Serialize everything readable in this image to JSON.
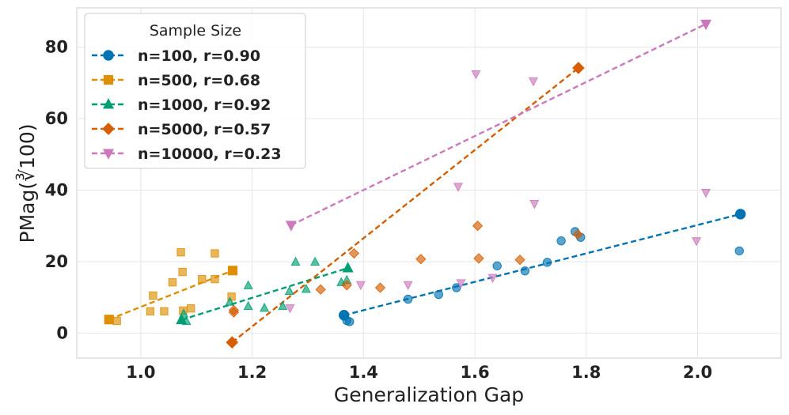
{
  "chart_data": {
    "type": "scatter",
    "title": "",
    "xlabel": "Generalization Gap",
    "ylabel": "PMag(∛100)",
    "xlim": [
      0.885,
      2.15
    ],
    "ylim": [
      -7,
      91
    ],
    "xticks": [
      1.0,
      1.2,
      1.4,
      1.6,
      1.8,
      2.0
    ],
    "yticks": [
      0,
      20,
      40,
      60,
      80
    ],
    "xtick_labels": [
      "1.0",
      "1.2",
      "1.4",
      "1.6",
      "1.8",
      "2.0"
    ],
    "ytick_labels": [
      "0",
      "20",
      "40",
      "60",
      "80"
    ],
    "grid": true,
    "legend": {
      "title": "Sample Size",
      "position": "top-left"
    },
    "series": [
      {
        "name": "n=100, r=0.90",
        "color": "#0173b2",
        "marker": "circle",
        "points": [
          [
            1.365,
            5.0
          ],
          [
            1.37,
            3.5
          ],
          [
            1.375,
            3.2
          ],
          [
            1.48,
            9.5
          ],
          [
            1.535,
            10.8
          ],
          [
            1.567,
            12.7
          ],
          [
            1.64,
            18.8
          ],
          [
            1.69,
            17.4
          ],
          [
            1.73,
            19.8
          ],
          [
            1.755,
            25.8
          ],
          [
            1.78,
            28.4
          ],
          [
            1.79,
            26.8
          ],
          [
            2.075,
            23.0
          ],
          [
            2.077,
            33.3
          ]
        ],
        "fit": [
          [
            1.365,
            5.0
          ],
          [
            2.077,
            33.3
          ]
        ]
      },
      {
        "name": "n=500, r=0.68",
        "color": "#de8f05",
        "marker": "square",
        "points": [
          [
            0.943,
            3.8
          ],
          [
            0.957,
            3.4
          ],
          [
            1.017,
            6.1
          ],
          [
            1.022,
            10.5
          ],
          [
            1.042,
            6.1
          ],
          [
            1.057,
            14.2
          ],
          [
            1.072,
            22.6
          ],
          [
            1.075,
            17.1
          ],
          [
            1.076,
            6.3
          ],
          [
            1.09,
            6.9
          ],
          [
            1.11,
            15.1
          ],
          [
            1.133,
            15.1
          ],
          [
            1.133,
            22.3
          ],
          [
            1.163,
            10.2
          ],
          [
            1.165,
            17.5
          ]
        ],
        "fit": [
          [
            0.943,
            3.8
          ],
          [
            1.165,
            17.5
          ]
        ]
      },
      {
        "name": "n=1000, r=0.92",
        "color": "#029e73",
        "marker": "triangle",
        "points": [
          [
            1.073,
            3.7
          ],
          [
            1.077,
            5.4
          ],
          [
            1.082,
            3.3
          ],
          [
            1.16,
            8.7
          ],
          [
            1.193,
            13.3
          ],
          [
            1.193,
            7.5
          ],
          [
            1.222,
            7.0
          ],
          [
            1.255,
            7.5
          ],
          [
            1.267,
            11.7
          ],
          [
            1.278,
            19.9
          ],
          [
            1.297,
            12.3
          ],
          [
            1.313,
            19.9
          ],
          [
            1.36,
            14.2
          ],
          [
            1.37,
            14.8
          ],
          [
            1.372,
            18.2
          ]
        ],
        "fit": [
          [
            1.073,
            3.7
          ],
          [
            1.372,
            18.2
          ]
        ]
      },
      {
        "name": "n=5000, r=0.57",
        "color": "#d55e00",
        "marker": "diamond",
        "points": [
          [
            1.164,
            -2.6
          ],
          [
            1.167,
            5.8
          ],
          [
            1.167,
            6.4
          ],
          [
            1.323,
            12.2
          ],
          [
            1.37,
            13.4
          ],
          [
            1.383,
            22.3
          ],
          [
            1.43,
            12.7
          ],
          [
            1.503,
            20.7
          ],
          [
            1.605,
            30.0
          ],
          [
            1.607,
            20.9
          ],
          [
            1.681,
            20.5
          ],
          [
            1.785,
            27.6
          ],
          [
            1.786,
            74.2
          ]
        ],
        "fit": [
          [
            1.164,
            -2.6
          ],
          [
            1.786,
            74.2
          ]
        ]
      },
      {
        "name": "n=10000, r=0.23",
        "color": "#cc78bc",
        "marker": "triangle-down",
        "points": [
          [
            1.268,
            7.0
          ],
          [
            1.27,
            30.2
          ],
          [
            1.395,
            13.5
          ],
          [
            1.48,
            13.5
          ],
          [
            1.57,
            41.0
          ],
          [
            1.575,
            14.0
          ],
          [
            1.602,
            72.5
          ],
          [
            1.632,
            15.5
          ],
          [
            1.705,
            70.5
          ],
          [
            1.707,
            36.2
          ],
          [
            1.998,
            25.8
          ],
          [
            2.015,
            39.3
          ],
          [
            2.015,
            86.5
          ]
        ],
        "fit": [
          [
            1.27,
            30.2
          ],
          [
            2.015,
            86.5
          ]
        ]
      }
    ]
  }
}
